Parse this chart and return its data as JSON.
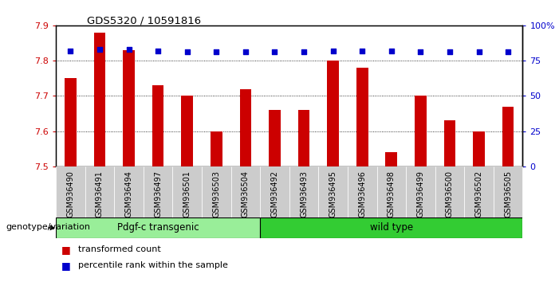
{
  "title": "GDS5320 / 10591816",
  "categories": [
    "GSM936490",
    "GSM936491",
    "GSM936494",
    "GSM936497",
    "GSM936501",
    "GSM936503",
    "GSM936504",
    "GSM936492",
    "GSM936493",
    "GSM936495",
    "GSM936496",
    "GSM936498",
    "GSM936499",
    "GSM936500",
    "GSM936502",
    "GSM936505"
  ],
  "bar_values": [
    7.75,
    7.88,
    7.83,
    7.73,
    7.7,
    7.6,
    7.72,
    7.66,
    7.66,
    7.8,
    7.78,
    7.54,
    7.7,
    7.63,
    7.6,
    7.67
  ],
  "percentile_values": [
    82,
    83,
    83,
    82,
    81,
    81,
    81,
    81,
    81,
    82,
    82,
    82,
    81,
    81,
    81,
    81
  ],
  "bar_color": "#cc0000",
  "percentile_color": "#0000cc",
  "ylim_left": [
    7.5,
    7.9
  ],
  "ylim_right": [
    0,
    100
  ],
  "yticks_left": [
    7.5,
    7.6,
    7.7,
    7.8,
    7.9
  ],
  "yticks_right": [
    0,
    25,
    50,
    75,
    100
  ],
  "ytick_labels_right": [
    "0",
    "25",
    "50",
    "75",
    "100%"
  ],
  "group1_label": "Pdgf-c transgenic",
  "group2_label": "wild type",
  "group1_count": 7,
  "group2_count": 9,
  "group1_color": "#99ee99",
  "group2_color": "#33cc33",
  "legend_transformed": "transformed count",
  "legend_percentile": "percentile rank within the sample",
  "genotype_label": "genotype/variation",
  "background_color": "#ffffff",
  "tick_color_left": "#cc0000",
  "tick_color_right": "#0000cc",
  "bar_width": 0.4,
  "xlabel_gray": "#cccccc",
  "border_color": "#000000"
}
